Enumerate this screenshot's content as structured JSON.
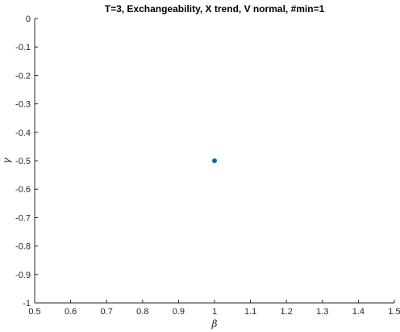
{
  "chart_data": {
    "type": "scatter",
    "title": "T=3, Exchangeability, X trend, V normal, #min=1",
    "xlabel": "β",
    "ylabel": "γ",
    "xlim": [
      0.5,
      1.5
    ],
    "ylim": [
      -1,
      0
    ],
    "xticks": [
      0.5,
      0.6,
      0.7,
      0.8,
      0.9,
      1.0,
      1.1,
      1.2,
      1.3,
      1.4,
      1.5
    ],
    "xtick_labels": [
      "0.5",
      "0.6",
      "0.7",
      "0.8",
      "0.9",
      "1",
      "1.1",
      "1.2",
      "1.3",
      "1.4",
      "1.5"
    ],
    "yticks": [
      0,
      -0.1,
      -0.2,
      -0.3,
      -0.4,
      -0.5,
      -0.6,
      -0.7,
      -0.8,
      -0.9,
      -1
    ],
    "ytick_labels": [
      "0",
      "-0.1",
      "-0.2",
      "-0.3",
      "-0.4",
      "-0.5",
      "-0.6",
      "-0.7",
      "-0.8",
      "-0.9",
      "-1"
    ],
    "grid": false,
    "box": false,
    "series": [
      {
        "x": [
          1.0
        ],
        "y": [
          -0.5
        ],
        "color": "#0072BD",
        "marker": "filled-circle"
      }
    ]
  }
}
